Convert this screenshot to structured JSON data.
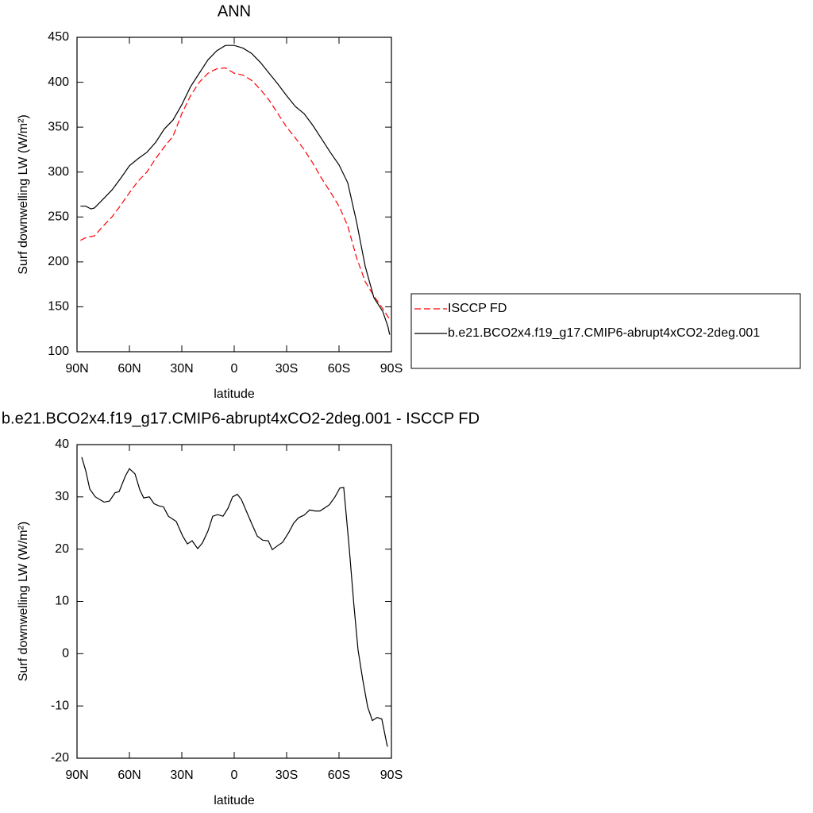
{
  "chart_data": [
    {
      "type": "line",
      "title": "ANN",
      "xlabel": "latitude",
      "ylabel": "Surf downwelling LW (W/m²)",
      "xlim": [
        90,
        -90
      ],
      "xticks": [
        {
          "value": 90,
          "label": "90N"
        },
        {
          "value": 60,
          "label": "60N"
        },
        {
          "value": 30,
          "label": "30N"
        },
        0,
        {
          "value": -30,
          "label": "30S"
        },
        {
          "value": -60,
          "label": "60S"
        },
        {
          "value": -90,
          "label": "90S"
        }
      ],
      "ylim": [
        100,
        450
      ],
      "yticks": [
        100,
        150,
        200,
        250,
        300,
        350,
        400,
        450
      ],
      "legend": "right",
      "series": [
        {
          "name": "ISCCP FD",
          "color": "#ff0000",
          "line_style": "dashed",
          "x": [
            88,
            85,
            80,
            75,
            70,
            65,
            60,
            55,
            50,
            45,
            40,
            35,
            30,
            25,
            20,
            15,
            10,
            5,
            0,
            -5,
            -10,
            -15,
            -20,
            -25,
            -30,
            -35,
            -40,
            -45,
            -50,
            -55,
            -60,
            -65,
            -70,
            -75,
            -80,
            -85,
            -89
          ],
          "values": [
            224,
            227,
            229,
            240,
            250,
            263,
            277,
            290,
            300,
            315,
            328,
            340,
            365,
            385,
            400,
            410,
            415,
            416,
            410,
            408,
            402,
            392,
            380,
            365,
            350,
            338,
            325,
            310,
            293,
            278,
            262,
            240,
            205,
            178,
            162,
            148,
            136
          ]
        },
        {
          "name": "b.e21.BCO2x4.f19_g17.CMIP6-abrupt4xCO2-2deg.001",
          "color": "#000000",
          "line_style": "solid",
          "x": [
            88,
            85,
            82,
            80,
            75,
            70,
            65,
            60,
            55,
            50,
            45,
            40,
            35,
            30,
            25,
            20,
            15,
            10,
            5,
            0,
            -5,
            -10,
            -15,
            -20,
            -25,
            -30,
            -35,
            -40,
            -45,
            -50,
            -55,
            -60,
            -65,
            -70,
            -75,
            -80,
            -85,
            -88,
            -89
          ],
          "values": [
            262,
            262,
            259,
            260,
            270,
            280,
            293,
            307,
            315,
            322,
            333,
            348,
            358,
            375,
            395,
            410,
            425,
            435,
            441,
            441,
            438,
            432,
            422,
            410,
            398,
            385,
            373,
            365,
            352,
            337,
            322,
            308,
            288,
            245,
            195,
            160,
            145,
            128,
            119
          ]
        }
      ]
    },
    {
      "type": "line",
      "title": "b.e21.BCO2x4.f19_g17.CMIP6-abrupt4xCO2-2deg.001 - ISCCP FD",
      "xlabel": "latitude",
      "ylabel": "Surf downwelling LW (W/m²)",
      "xlim": [
        90,
        -90
      ],
      "xticks": [
        {
          "value": 90,
          "label": "90N"
        },
        {
          "value": 60,
          "label": "60N"
        },
        {
          "value": 30,
          "label": "30N"
        },
        0,
        {
          "value": -30,
          "label": "30S"
        },
        {
          "value": -60,
          "label": "60S"
        },
        {
          "value": -90,
          "label": "90S"
        }
      ],
      "ylim": [
        -20,
        40
      ],
      "yticks": [
        -20,
        -10,
        0,
        10,
        20,
        30,
        40
      ],
      "series": [
        {
          "color": "#000000",
          "line_style": "solid",
          "x": [
            87.3,
            85,
            82.7,
            79.5,
            74.5,
            71.4,
            68.2,
            65.9,
            62.3,
            60,
            56.8,
            54,
            51.8,
            48.6,
            45.9,
            43.2,
            40.5,
            37.7,
            33.2,
            29.5,
            26.8,
            24.1,
            20.9,
            18.2,
            15,
            12.3,
            9.5,
            6.4,
            3.6,
            0.9,
            -1.8,
            -4.1,
            -7.3,
            -10.5,
            -13.2,
            -16.4,
            -19.5,
            -21.8,
            -25,
            -27.7,
            -31.4,
            -34.1,
            -36.8,
            -40,
            -43.2,
            -46.4,
            -49.1,
            -52.3,
            -54.5,
            -57.7,
            -60.5,
            -62.7,
            -65.9,
            -68.6,
            -70.9,
            -73.6,
            -76.4,
            -79.1,
            -81.8,
            -84.5,
            -87.7
          ],
          "values": [
            37.6,
            35,
            31.5,
            30,
            29,
            29.2,
            30.8,
            31,
            34,
            35.4,
            34.4,
            31.3,
            29.8,
            30,
            28.7,
            28.3,
            28.1,
            26.3,
            25.3,
            22.5,
            21,
            21.6,
            20.1,
            21.2,
            23.5,
            26.3,
            26.6,
            26.3,
            27.8,
            30,
            30.5,
            29.5,
            27,
            24.5,
            22.5,
            21.7,
            21.6,
            19.9,
            20.7,
            21.3,
            23.3,
            25,
            26,
            26.5,
            27.5,
            27.3,
            27.3,
            28,
            28.5,
            30,
            31.7,
            31.8,
            20,
            9,
            0.7,
            -5,
            -10.2,
            -12.8,
            -12.2,
            -12.5,
            -17.8
          ]
        }
      ]
    }
  ]
}
